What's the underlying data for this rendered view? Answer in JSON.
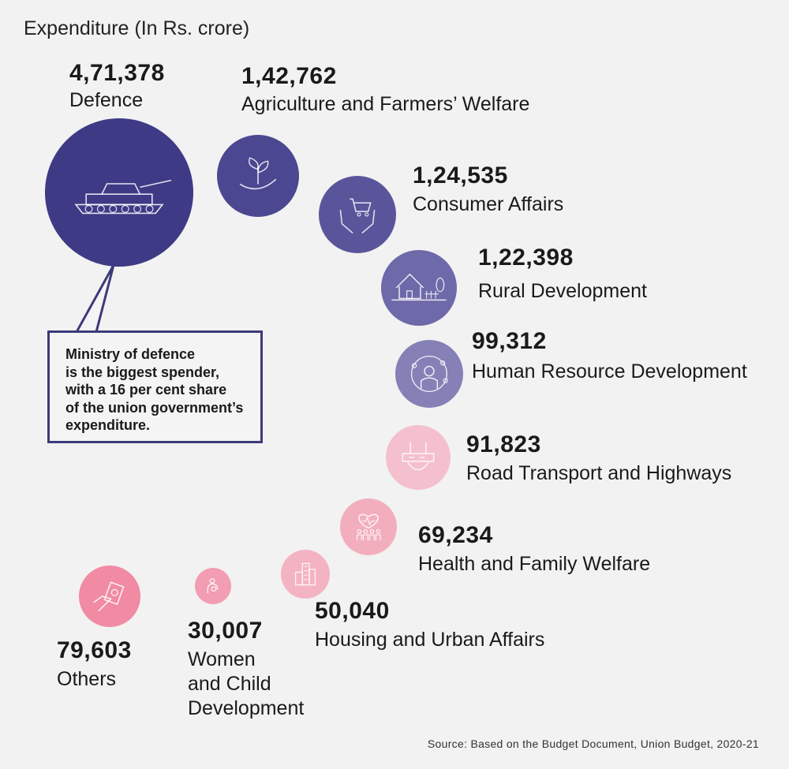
{
  "chart_data": {
    "type": "bubble",
    "title": "Expenditure (In Rs. crore)",
    "items": [
      {
        "category": "Defence",
        "value_label": "4,71,378",
        "value": 471378,
        "color": "#3f3a85",
        "icon": "tank-icon"
      },
      {
        "category": "Agriculture and Farmers’ Welfare",
        "value_label": "1,42,762",
        "value": 142762,
        "color": "#4b4791",
        "icon": "sprout-hand-icon"
      },
      {
        "category": "Consumer Affairs",
        "value_label": "1,24,535",
        "value": 124535,
        "color": "#5a559b",
        "icon": "cart-hands-icon"
      },
      {
        "category": "Rural Development",
        "value_label": "1,22,398",
        "value": 122398,
        "color": "#6e69a9",
        "icon": "house-icon"
      },
      {
        "category": "Human Resource Development",
        "value_label": "99,312",
        "value": 99312,
        "color": "#8580b6",
        "icon": "person-network-icon"
      },
      {
        "category": "Road Transport and Highways",
        "value_label": "91,823",
        "value": 91823,
        "color": "#f4c0cd",
        "icon": "road-icon"
      },
      {
        "category": "Health and Family Welfare",
        "value_label": "69,234",
        "value": 69234,
        "color": "#f3aebe",
        "icon": "heart-family-icon"
      },
      {
        "category": "Housing and Urban Affairs",
        "value_label": "50,040",
        "value": 50040,
        "color": "#f4b3c3",
        "icon": "buildings-icon"
      },
      {
        "category": "Women and Child Development",
        "category_lines": [
          "Women",
          "and Child",
          "Development"
        ],
        "value_label": "30,007",
        "value": 30007,
        "color": "#f29db3",
        "icon": "mother-child-icon"
      },
      {
        "category": "Others",
        "value_label": "79,603",
        "value": 79603,
        "color": "#f18aa3",
        "icon": "money-hand-icon"
      }
    ],
    "callout": [
      "Ministry of defence",
      "is the biggest spender,",
      "with a 16 per cent share",
      "of the union government’s",
      "expenditure."
    ],
    "source": "Source: Based on the Budget Document, Union Budget, 2020-21"
  }
}
